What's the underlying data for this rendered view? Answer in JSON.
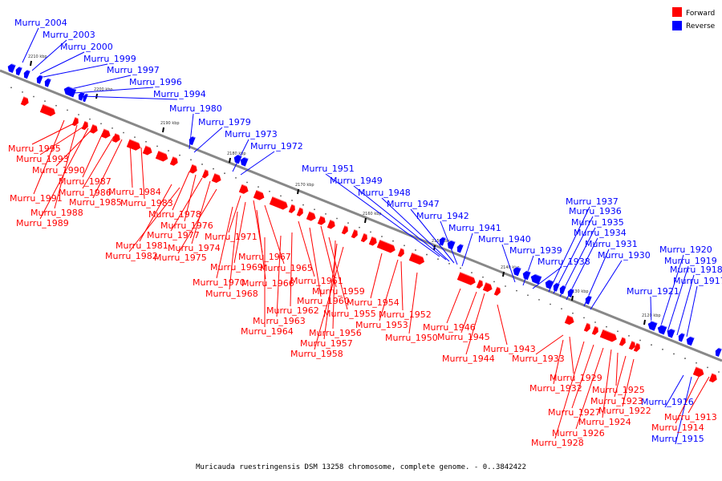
{
  "colors": {
    "forward": "#ff0000",
    "reverse": "#0000ff",
    "backbone": "#888888",
    "forward_line": "#ff0000",
    "reverse_line": "#0000ff"
  },
  "legend": {
    "forward_label": "Forward",
    "reverse_label": "Reverse"
  },
  "caption": "Muricauda ruestringensis DSM 13258 chromosome, complete genome. - 0..3842422",
  "ticks": [
    {
      "label": "2210 kbp"
    },
    {
      "label": "2200 kbp"
    },
    {
      "label": "2190 kbp"
    },
    {
      "label": "2180 kbp"
    },
    {
      "label": "2170 kbp"
    },
    {
      "label": "2160 kbp"
    },
    {
      "label": "2150 kbp"
    },
    {
      "label": "2140 kbp"
    },
    {
      "label": "2130 kbp"
    },
    {
      "label": "2120 kbp"
    }
  ],
  "reverse_genes": [
    "Murru_2004",
    "Murru_2003",
    "Murru_2000",
    "Murru_1999",
    "Murru_1997",
    "Murru_1996",
    "Murru_1994",
    "Murru_1980",
    "Murru_1979",
    "Murru_1973",
    "Murru_1972",
    "Murru_1951",
    "Murru_1949",
    "Murru_1948",
    "Murru_1947",
    "Murru_1942",
    "Murru_1941",
    "Murru_1940",
    "Murru_1939",
    "Murru_1938",
    "Murru_1937",
    "Murru_1936",
    "Murru_1935",
    "Murru_1934",
    "Murru_1931",
    "Murru_1930",
    "Murru_1921",
    "Murru_1920",
    "Murru_1919",
    "Murru_1918",
    "Murru_1917",
    "Murru_1916",
    "Murru_1915"
  ],
  "forward_genes": [
    "Murru_1995",
    "Murru_1993",
    "Murru_1990",
    "Murru_1987",
    "Murru_1986",
    "Murru_1985",
    "Murru_1984",
    "Murru_1983",
    "Murru_1991",
    "Murru_1988",
    "Murru_1989",
    "Murru_1978",
    "Murru_1976",
    "Murru_1977",
    "Murru_1974",
    "Murru_1981",
    "Murru_1982",
    "Murru_1975",
    "Murru_1971",
    "Murru_1967",
    "Murru_1969",
    "Murru_1965",
    "Murru_1970",
    "Murru_1966",
    "Murru_1968",
    "Murru_1961",
    "Murru_1959",
    "Murru_1960",
    "Murru_1962",
    "Murru_1955",
    "Murru_1963",
    "Murru_1964",
    "Murru_1956",
    "Murru_1957",
    "Murru_1958",
    "Murru_1954",
    "Murru_1953",
    "Murru_1952",
    "Murru_1950",
    "Murru_1946",
    "Murru_1945",
    "Murru_1944",
    "Murru_1943",
    "Murru_1933",
    "Murru_1929",
    "Murru_1932",
    "Murru_1925",
    "Murru_1923",
    "Murru_1927",
    "Murru_1922",
    "Murru_1924",
    "Murru_1926",
    "Murru_1928",
    "Murru_1913",
    "Murru_1914"
  ]
}
